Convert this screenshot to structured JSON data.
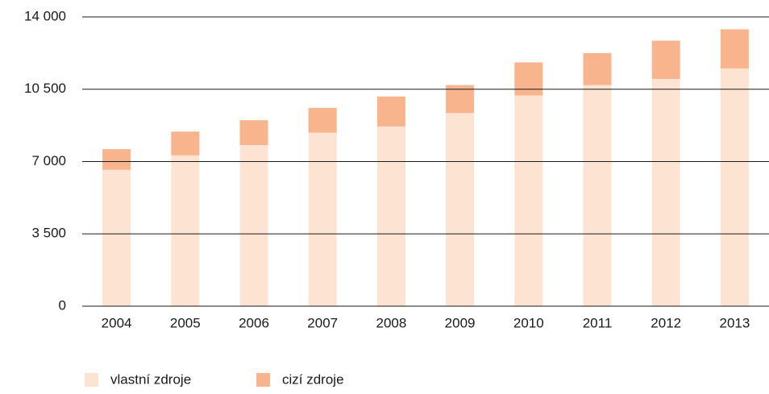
{
  "chart_data": {
    "type": "stacked_bar",
    "categories": [
      "2004",
      "2005",
      "2006",
      "2007",
      "2008",
      "2009",
      "2010",
      "2011",
      "2012",
      "2013"
    ],
    "series": [
      {
        "name": "vlastní zdroje",
        "color": "#fde3d2",
        "values": [
          6600,
          7300,
          7800,
          8400,
          8700,
          9350,
          10200,
          10700,
          11000,
          11500
        ]
      },
      {
        "name": "cizí zdroje",
        "color": "#f8b48c",
        "values": [
          1000,
          1150,
          1200,
          1200,
          1450,
          1350,
          1600,
          1550,
          1850,
          1900
        ]
      }
    ],
    "ylim": [
      0,
      14000
    ],
    "yticks": [
      0,
      {
        "value": 3500,
        "label": "3 500"
      },
      {
        "value": 7000,
        "label": "7 000"
      },
      {
        "value": 10500,
        "label": "10 500"
      },
      {
        "value": 14000,
        "label": "14 000"
      }
    ],
    "grid": true,
    "legend": "bottom-left"
  }
}
